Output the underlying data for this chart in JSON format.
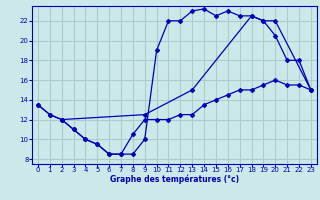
{
  "xlabel": "Graphe des températures (°c)",
  "xlim": [
    -0.5,
    23.5
  ],
  "ylim": [
    7.5,
    23.5
  ],
  "yticks": [
    8,
    10,
    12,
    14,
    16,
    18,
    20,
    22
  ],
  "xticks": [
    0,
    1,
    2,
    3,
    4,
    5,
    6,
    7,
    8,
    9,
    10,
    11,
    12,
    13,
    14,
    15,
    16,
    17,
    18,
    19,
    20,
    21,
    22,
    23
  ],
  "background_color": "#cce8e8",
  "grid_color": "#aacccc",
  "line_color": "#0000bb",
  "curve1_x": [
    0,
    1,
    2,
    3,
    4,
    5,
    6,
    7,
    8,
    9,
    10,
    11,
    12,
    13,
    14,
    15,
    16,
    17,
    18,
    19,
    20,
    21,
    22,
    23
  ],
  "curve1_y": [
    13.5,
    12.5,
    12.0,
    11.0,
    10.0,
    9.5,
    8.5,
    8.5,
    8.5,
    10.0,
    19.0,
    22.0,
    22.0,
    23.0,
    23.2,
    22.5,
    23.0,
    22.5,
    22.5,
    22.0,
    20.5,
    18.0,
    18.0,
    15.0
  ],
  "curve2_x": [
    0,
    1,
    2,
    3,
    4,
    5,
    6,
    7,
    8,
    9,
    10,
    11,
    12,
    13,
    14,
    15,
    16,
    17,
    18,
    19,
    20,
    21,
    22,
    23
  ],
  "curve2_y": [
    13.5,
    12.5,
    12.0,
    11.0,
    10.0,
    9.5,
    8.5,
    8.5,
    10.5,
    12.0,
    12.0,
    12.0,
    12.5,
    12.5,
    13.5,
    14.0,
    14.5,
    15.0,
    15.0,
    15.5,
    16.0,
    15.5,
    15.5,
    15.0
  ],
  "curve3_x": [
    2,
    9,
    13,
    18,
    19,
    20,
    23
  ],
  "curve3_y": [
    12.0,
    12.5,
    15.0,
    22.5,
    22.0,
    22.0,
    15.0
  ]
}
